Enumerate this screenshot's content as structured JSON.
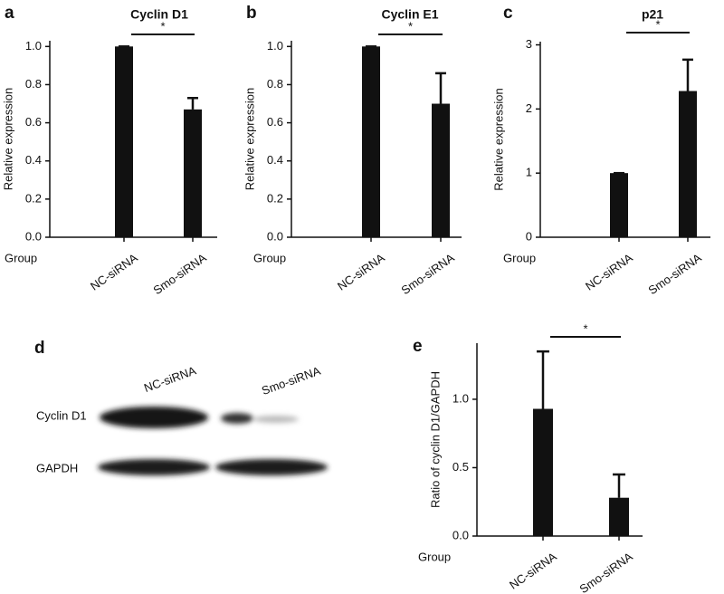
{
  "chart_data": [
    {
      "type": "bar",
      "panel": "a",
      "title": "Cyclin D1",
      "y_label": "Relative expression",
      "x_label": "Group",
      "categories": [
        "NC-siRNA",
        "Smo-siRNA"
      ],
      "values": [
        1.0,
        0.67
      ],
      "errors": [
        0,
        0.06
      ],
      "color": "#111111",
      "ylim": [
        0,
        1.03
      ],
      "yticks": [
        {
          "value": 0,
          "label": "0.0"
        },
        0.2,
        0.4,
        0.6,
        0.8,
        {
          "value": 1,
          "label": "1.0"
        }
      ],
      "annotation": "*"
    },
    {
      "type": "bar",
      "panel": "b",
      "title": "Cyclin E1",
      "y_label": "Relative expression",
      "x_label": "Group",
      "categories": [
        "NC-siRNA",
        "Smo-siRNA"
      ],
      "values": [
        1.0,
        0.7
      ],
      "errors": [
        0,
        0.16
      ],
      "color": "#111111",
      "ylim": [
        0,
        1.03
      ],
      "yticks": [
        {
          "value": 0,
          "label": "0.0"
        },
        0.2,
        0.4,
        0.6,
        0.8,
        {
          "value": 1,
          "label": "1.0"
        }
      ],
      "annotation": "*"
    },
    {
      "type": "bar",
      "panel": "c",
      "title": "p21",
      "y_label": "Relative expression",
      "x_label": "Group",
      "categories": [
        "NC-siRNA",
        "Smo-siRNA"
      ],
      "values": [
        1.0,
        2.28
      ],
      "errors": [
        0,
        0.49
      ],
      "color": "#111111",
      "ylim": [
        0,
        3.05
      ],
      "yticks": [
        0,
        1,
        2,
        3
      ],
      "annotation": "*"
    },
    {
      "type": "bar",
      "panel": "e",
      "y_label": "Ratio of cyclin D1/GAPDH",
      "x_label": "Group",
      "categories": [
        "NC-siRNA",
        "Smo-siRNA"
      ],
      "values": [
        0.93,
        0.28
      ],
      "errors": [
        0.42,
        0.17
      ],
      "color": "#111111",
      "ylim": [
        0,
        1.41
      ],
      "yticks": [
        {
          "value": 0,
          "label": "0.0"
        },
        0.5,
        {
          "value": 1,
          "label": "1.0"
        }
      ],
      "annotation": "*"
    }
  ],
  "blot": {
    "panel": "d",
    "lanes": [
      "NC-siRNA",
      "Smo-siRNA"
    ],
    "rows": [
      "Cyclin D1",
      "GAPDH"
    ]
  }
}
